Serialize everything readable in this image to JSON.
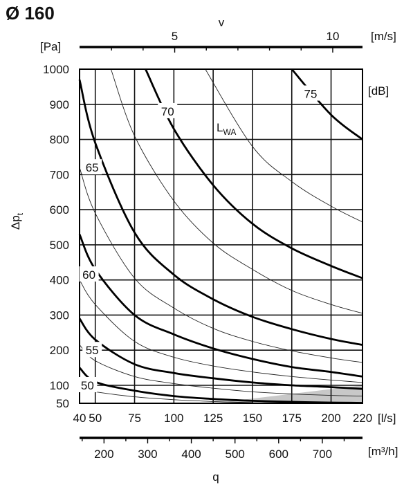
{
  "chart_data": {
    "type": "line",
    "title": "Ø 160",
    "x": {
      "label": "q",
      "unit": "[l/s]",
      "ticks": [
        40,
        50,
        75,
        100,
        125,
        150,
        175,
        200,
        220
      ],
      "range": [
        40,
        220
      ]
    },
    "x_secondary": {
      "unit": "[m³/h]",
      "ticks": [
        200,
        300,
        400,
        500,
        600,
        700
      ]
    },
    "x_top": {
      "label": "v",
      "unit": "[m/s]",
      "ticks": [
        5,
        10
      ]
    },
    "y": {
      "label": "Δpt",
      "unit": "[Pa]",
      "ticks": [
        50,
        100,
        200,
        300,
        400,
        500,
        600,
        700,
        800,
        900,
        1000
      ],
      "range": [
        50,
        1000
      ]
    },
    "contour_label": "LWA",
    "contour_unit": "[dB]",
    "major_series": [
      {
        "name": "50",
        "points": [
          [
            40,
            150
          ],
          [
            50,
            110
          ],
          [
            75,
            85
          ],
          [
            100,
            70
          ],
          [
            125,
            62
          ],
          [
            150,
            57
          ],
          [
            175,
            54
          ],
          [
            200,
            52
          ],
          [
            220,
            51
          ]
        ]
      },
      {
        "name": "55",
        "points": [
          [
            40,
            290
          ],
          [
            50,
            230
          ],
          [
            75,
            160
          ],
          [
            100,
            135
          ],
          [
            125,
            120
          ],
          [
            150,
            108
          ],
          [
            175,
            100
          ],
          [
            200,
            95
          ],
          [
            220,
            90
          ]
        ]
      },
      {
        "name": "60",
        "points": [
          [
            40,
            530
          ],
          [
            50,
            430
          ],
          [
            75,
            300
          ],
          [
            100,
            245
          ],
          [
            125,
            205
          ],
          [
            150,
            175
          ],
          [
            175,
            152
          ],
          [
            200,
            138
          ],
          [
            220,
            125
          ]
        ]
      },
      {
        "name": "65",
        "points": [
          [
            40,
            970
          ],
          [
            50,
            790
          ],
          [
            75,
            535
          ],
          [
            100,
            415
          ],
          [
            125,
            345
          ],
          [
            150,
            295
          ],
          [
            175,
            260
          ],
          [
            200,
            232
          ],
          [
            220,
            215
          ]
        ]
      },
      {
        "name": "70",
        "points": [
          [
            82,
            1000
          ],
          [
            100,
            830
          ],
          [
            125,
            670
          ],
          [
            150,
            560
          ],
          [
            175,
            490
          ],
          [
            200,
            440
          ],
          [
            220,
            405
          ]
        ]
      },
      {
        "name": "75",
        "points": [
          [
            175,
            1000
          ],
          [
            200,
            870
          ],
          [
            220,
            800
          ]
        ]
      }
    ],
    "minor_series": [
      {
        "points": [
          [
            40,
            90
          ],
          [
            50,
            82
          ],
          [
            75,
            68
          ],
          [
            100,
            60
          ],
          [
            125,
            55
          ],
          [
            150,
            52
          ]
        ]
      },
      {
        "points": [
          [
            40,
            215
          ],
          [
            50,
            170
          ],
          [
            75,
            125
          ],
          [
            100,
            105
          ],
          [
            125,
            92
          ],
          [
            150,
            82
          ],
          [
            175,
            76
          ],
          [
            200,
            72
          ],
          [
            220,
            70
          ]
        ]
      },
      {
        "points": [
          [
            40,
            400
          ],
          [
            50,
            330
          ],
          [
            75,
            225
          ],
          [
            100,
            180
          ],
          [
            125,
            155
          ],
          [
            150,
            138
          ],
          [
            175,
            125
          ],
          [
            200,
            115
          ],
          [
            220,
            108
          ]
        ]
      },
      {
        "points": [
          [
            40,
            720
          ],
          [
            50,
            590
          ],
          [
            75,
            405
          ],
          [
            100,
            320
          ],
          [
            125,
            262
          ],
          [
            150,
            225
          ],
          [
            175,
            198
          ],
          [
            200,
            178
          ],
          [
            220,
            165
          ]
        ]
      },
      {
        "points": [
          [
            60,
            1000
          ],
          [
            75,
            810
          ],
          [
            100,
            625
          ],
          [
            125,
            505
          ],
          [
            150,
            430
          ],
          [
            175,
            370
          ],
          [
            200,
            330
          ],
          [
            220,
            305
          ]
        ]
      },
      {
        "points": [
          [
            120,
            1000
          ],
          [
            150,
            780
          ],
          [
            175,
            680
          ],
          [
            200,
            610
          ],
          [
            220,
            565
          ]
        ]
      }
    ],
    "shaded_region": [
      [
        125,
        50
      ],
      [
        220,
        100
      ],
      [
        220,
        50
      ]
    ],
    "grid": true
  }
}
